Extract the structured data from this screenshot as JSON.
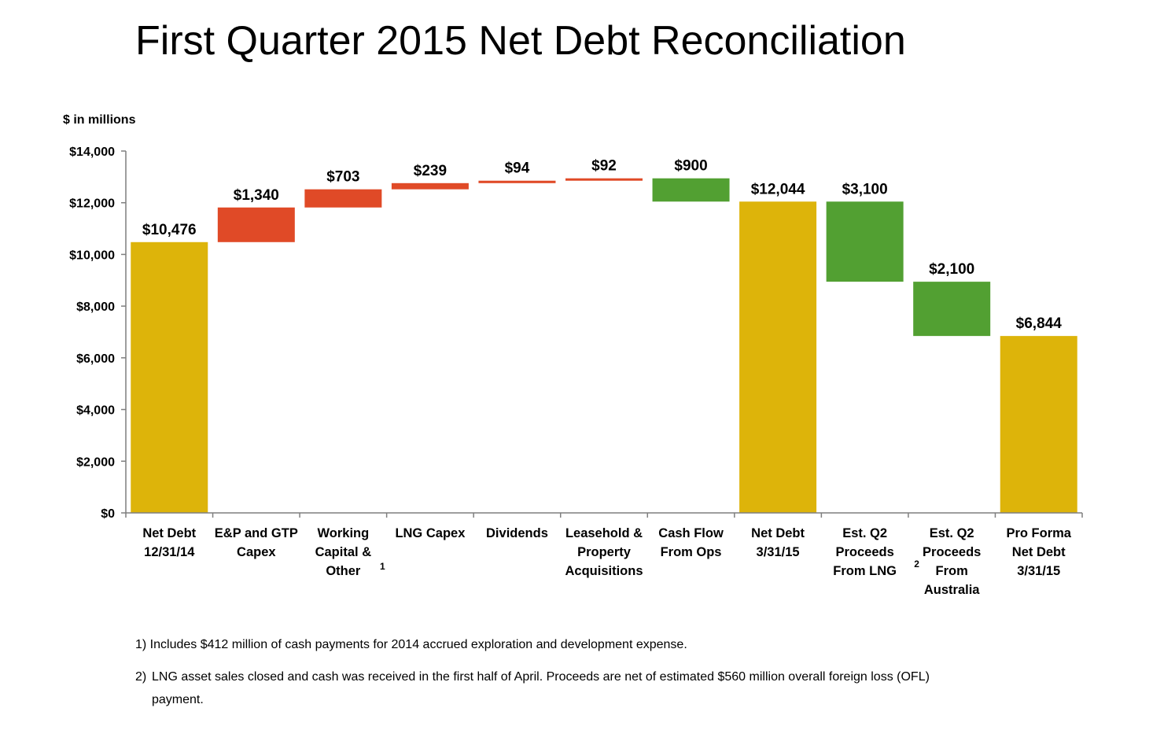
{
  "title": "First Quarter 2015 Net Debt Reconciliation",
  "units_label": "$ in millions",
  "chart_data": {
    "type": "waterfall",
    "ylim": [
      0,
      14000
    ],
    "yticks": [
      {
        "value": 0,
        "label": "$0"
      },
      {
        "value": 2000,
        "label": "$2,000"
      },
      {
        "value": 4000,
        "label": "$4,000"
      },
      {
        "value": 6000,
        "label": "$6,000"
      },
      {
        "value": 8000,
        "label": "$8,000"
      },
      {
        "value": 10000,
        "label": "$10,000"
      },
      {
        "value": 12000,
        "label": "$12,000"
      },
      {
        "value": 14000,
        "label": "$14,000"
      }
    ],
    "bars": [
      {
        "category": [
          "Net Debt",
          "12/31/14"
        ],
        "start": 0,
        "end": 10476,
        "kind": "total",
        "label": "$10,476"
      },
      {
        "category": [
          "E&P and GTP",
          "Capex"
        ],
        "start": 10476,
        "end": 11816,
        "kind": "increase",
        "label": "$1,340"
      },
      {
        "category": [
          "Working",
          "Capital &",
          "Other"
        ],
        "start": 11816,
        "end": 12519,
        "kind": "increase",
        "label": "$703",
        "footnote": "1"
      },
      {
        "category": [
          "LNG Capex"
        ],
        "start": 12519,
        "end": 12758,
        "kind": "increase",
        "label": "$239"
      },
      {
        "category": [
          "Dividends"
        ],
        "start": 12758,
        "end": 12852,
        "kind": "increase",
        "label": "$94"
      },
      {
        "category": [
          "Leasehold &",
          "Property",
          "Acquisitions"
        ],
        "start": 12852,
        "end": 12944,
        "kind": "increase",
        "label": "$92"
      },
      {
        "category": [
          "Cash Flow",
          "From Ops"
        ],
        "start": 12944,
        "end": 12044,
        "kind": "decrease",
        "label": "$900"
      },
      {
        "category": [
          "Net Debt",
          "3/31/15"
        ],
        "start": 0,
        "end": 12044,
        "kind": "total",
        "label": "$12,044"
      },
      {
        "category": [
          "Est. Q2",
          "Proceeds",
          "From LNG"
        ],
        "start": 12044,
        "end": 8944,
        "kind": "decrease",
        "label": "$3,100",
        "footnote": "2"
      },
      {
        "category": [
          "Est. Q2",
          "Proceeds",
          "From",
          "Australia"
        ],
        "start": 8944,
        "end": 6844,
        "kind": "decrease",
        "label": "$2,100"
      },
      {
        "category": [
          "Pro Forma",
          "Net Debt",
          "3/31/15"
        ],
        "start": 0,
        "end": 6844,
        "kind": "total",
        "label": "$6,844"
      }
    ],
    "colors": {
      "total": "#DDB40A",
      "increase": "#E04A27",
      "decrease": "#52A032",
      "axis": "#7F7F7F"
    }
  },
  "footnotes": {
    "note1": "1) Includes $412 million of cash payments for 2014 accrued exploration and development expense.",
    "note2_num": "2)",
    "note2_line1": "LNG asset sales closed and cash was received in the first half of April. Proceeds are net of estimated $560 million overall foreign loss (OFL)",
    "note2_line2": "payment."
  }
}
